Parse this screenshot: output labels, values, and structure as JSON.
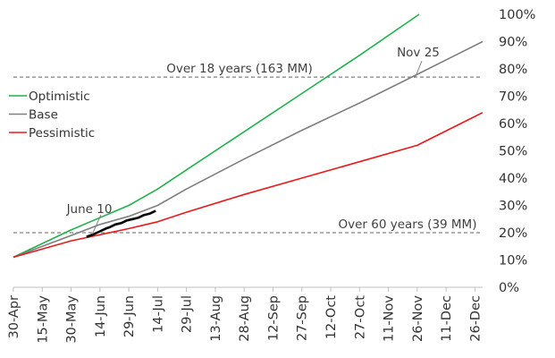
{
  "chart_data": {
    "type": "line",
    "title": "",
    "xlabel": "",
    "ylabel": "",
    "x_tick_labels": [
      "30-Apr",
      "15-May",
      "30-May",
      "14-Jun",
      "29-Jun",
      "14-Jul",
      "29-Jul",
      "13-Aug",
      "28-Aug",
      "12-Sep",
      "27-Sep",
      "12-Oct",
      "27-Oct",
      "11-Nov",
      "26-Nov",
      "11-Dec",
      "26-Dec"
    ],
    "x_tick_days": [
      0,
      15,
      30,
      45,
      60,
      75,
      90,
      105,
      120,
      135,
      150,
      165,
      180,
      195,
      210,
      225,
      240
    ],
    "xlim_days": [
      0,
      244
    ],
    "y_tick_labels": [
      "0%",
      "10%",
      "20%",
      "30%",
      "40%",
      "50%",
      "60%",
      "70%",
      "80%",
      "90%",
      "100%"
    ],
    "ylim": [
      0,
      100
    ],
    "legend_position": "left",
    "grid": false,
    "series": [
      {
        "name": "Optimistic",
        "color": "#22b14c",
        "points": [
          [
            0,
            11
          ],
          [
            30,
            21
          ],
          [
            45,
            25.5
          ],
          [
            60,
            30
          ],
          [
            65,
            32
          ],
          [
            75,
            36
          ],
          [
            90,
            43
          ],
          [
            120,
            57
          ],
          [
            150,
            71
          ],
          [
            180,
            85
          ],
          [
            211,
            100
          ]
        ]
      },
      {
        "name": "Base",
        "color": "#7f7f7f",
        "points": [
          [
            0,
            11
          ],
          [
            30,
            19
          ],
          [
            45,
            23
          ],
          [
            60,
            26
          ],
          [
            75,
            30
          ],
          [
            90,
            36
          ],
          [
            120,
            47
          ],
          [
            150,
            57.5
          ],
          [
            180,
            67.5
          ],
          [
            210,
            78
          ],
          [
            244,
            90
          ]
        ]
      },
      {
        "name": "Pessimistic",
        "color": "#e8191a",
        "points": [
          [
            0,
            11
          ],
          [
            30,
            17
          ],
          [
            60,
            21.5
          ],
          [
            75,
            24
          ],
          [
            90,
            27.5
          ],
          [
            120,
            34
          ],
          [
            150,
            40
          ],
          [
            180,
            46
          ],
          [
            210,
            52
          ],
          [
            244,
            64
          ]
        ]
      },
      {
        "name": "",
        "color": "#000000",
        "points": [
          [
            38,
            18.5
          ],
          [
            42,
            19.5
          ],
          [
            45,
            20.5
          ],
          [
            48,
            21.5
          ],
          [
            50,
            22
          ],
          [
            53,
            23
          ],
          [
            56,
            23.5
          ],
          [
            59,
            24.5
          ],
          [
            62,
            25
          ],
          [
            65,
            25.5
          ],
          [
            68,
            26.5
          ],
          [
            71,
            27
          ],
          [
            74,
            28
          ]
        ]
      }
    ],
    "reference_lines": [
      {
        "y": 77,
        "label": "Over 18 years (163 MM)"
      },
      {
        "y": 20,
        "label": "Over 60 years (39 MM)"
      }
    ],
    "callouts": [
      {
        "label": "June 10",
        "at": [
          41,
          19.5
        ]
      },
      {
        "label": "Nov 25",
        "at": [
          209,
          77
        ]
      }
    ]
  }
}
